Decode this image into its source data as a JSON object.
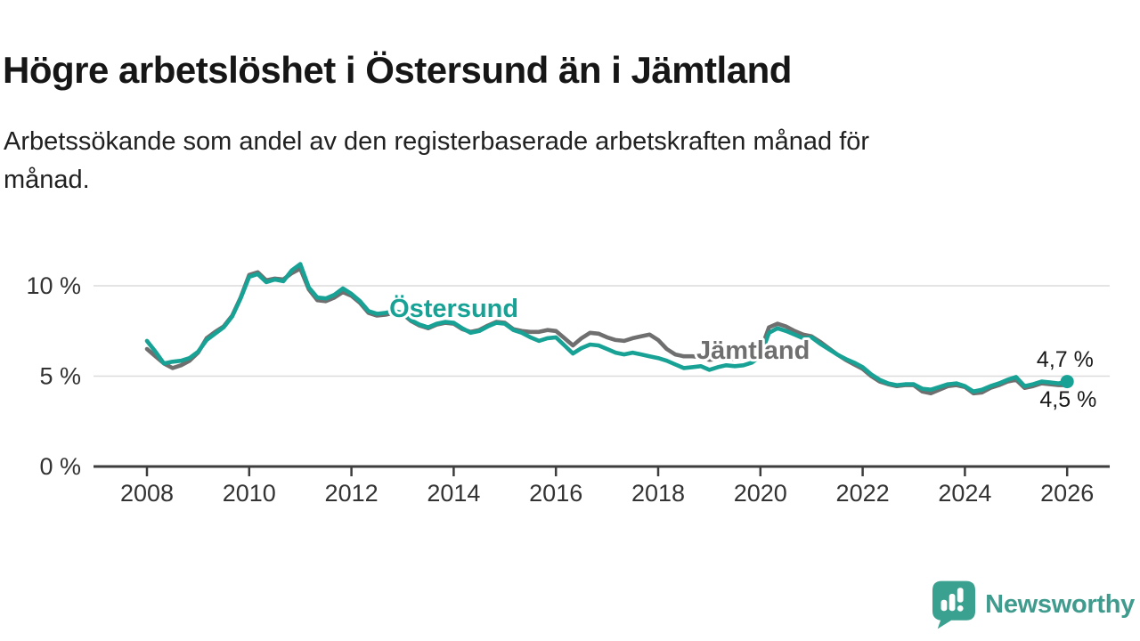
{
  "header": {
    "title": "Högre arbetslöshet i Östersund än i Jämtland",
    "subtitle_lines": [
      "Arbetssökande som andel av den registerbaserade arbetskraften månad för",
      "månad."
    ]
  },
  "chart_data": {
    "type": "line",
    "title": "Högre arbetslöshet i Östersund än i Jämtland",
    "subtitle": "Arbetssökande som andel av den registerbaserade arbetskraften månad för månad.",
    "x_axis": {
      "unit": "year",
      "start_year": 2008,
      "step_years": 0.1666667,
      "end_year": 2026,
      "ticks": [
        2008,
        2010,
        2012,
        2014,
        2016,
        2018,
        2020,
        2022,
        2024,
        2026
      ],
      "xlim": [
        2006.95,
        2026.85
      ]
    },
    "y_axis": {
      "unit": "percent",
      "ticks": [
        0,
        5,
        10
      ],
      "tick_labels": [
        "0 %",
        "5 %",
        "10 %"
      ],
      "gridlines": [
        5,
        10
      ],
      "ylim": [
        0,
        11.5
      ],
      "grid_on": true
    },
    "legend_position": "inline-labels",
    "series": [
      {
        "name": "Jämtland",
        "color": "#6F6F6F",
        "end_dot": false,
        "label_anchor": {
          "year": 2018.75,
          "value": 5.96,
          "anchor": "start"
        },
        "end_label": {
          "text": "4,5 %",
          "year": 2026.02,
          "value": 3.3,
          "anchor": "middle"
        },
        "values": [
          6.5,
          6.1,
          5.7,
          5.45,
          5.6,
          5.85,
          6.3,
          7.1,
          7.45,
          7.75,
          8.35,
          9.35,
          10.6,
          10.75,
          10.3,
          10.4,
          10.35,
          10.7,
          10.95,
          9.8,
          9.2,
          9.15,
          9.35,
          9.65,
          9.45,
          9.05,
          8.5,
          8.35,
          8.4,
          8.5,
          8.45,
          8.05,
          7.8,
          7.65,
          7.85,
          7.95,
          7.9,
          7.6,
          7.45,
          7.55,
          7.8,
          8.0,
          7.95,
          7.6,
          7.5,
          7.45,
          7.45,
          7.55,
          7.5,
          7.1,
          6.7,
          7.1,
          7.4,
          7.35,
          7.15,
          7.0,
          6.95,
          7.1,
          7.2,
          7.3,
          7.0,
          6.5,
          6.2,
          6.1,
          6.1,
          6.05,
          5.9,
          5.95,
          6.0,
          5.95,
          6.0,
          6.15,
          6.4,
          7.7,
          7.9,
          7.75,
          7.5,
          7.3,
          7.2,
          6.9,
          6.55,
          6.2,
          5.9,
          5.65,
          5.4,
          5.0,
          4.7,
          4.55,
          4.45,
          4.5,
          4.5,
          4.15,
          4.05,
          4.25,
          4.45,
          4.5,
          4.4,
          4.05,
          4.1,
          4.35,
          4.5,
          4.7,
          4.8,
          4.35,
          4.45,
          4.6,
          4.55,
          4.5,
          4.5
        ]
      },
      {
        "name": "Östersund",
        "color": "#17A295",
        "end_dot": true,
        "label_anchor": {
          "year": 2012.74,
          "value": 8.28,
          "anchor": "start"
        },
        "end_label": {
          "text": "4,7 %",
          "year": 2025.96,
          "value": 5.52,
          "anchor": "middle"
        },
        "values": [
          6.95,
          6.35,
          5.7,
          5.8,
          5.85,
          6.0,
          6.35,
          7.0,
          7.35,
          7.7,
          8.3,
          9.3,
          10.5,
          10.65,
          10.2,
          10.35,
          10.25,
          10.85,
          11.2,
          9.9,
          9.35,
          9.3,
          9.5,
          9.85,
          9.55,
          9.15,
          8.6,
          8.45,
          8.5,
          8.6,
          8.5,
          8.1,
          7.85,
          7.7,
          7.9,
          8.0,
          7.95,
          7.65,
          7.4,
          7.5,
          7.75,
          7.95,
          7.9,
          7.55,
          7.4,
          7.15,
          6.95,
          7.1,
          7.15,
          6.7,
          6.25,
          6.55,
          6.75,
          6.7,
          6.5,
          6.3,
          6.2,
          6.3,
          6.2,
          6.1,
          6.0,
          5.85,
          5.65,
          5.45,
          5.5,
          5.55,
          5.35,
          5.5,
          5.6,
          5.55,
          5.6,
          5.75,
          6.1,
          7.4,
          7.65,
          7.5,
          7.3,
          7.1,
          7.15,
          6.8,
          6.5,
          6.2,
          5.95,
          5.75,
          5.5,
          5.1,
          4.8,
          4.6,
          4.5,
          4.55,
          4.55,
          4.3,
          4.25,
          4.4,
          4.55,
          4.6,
          4.45,
          4.15,
          4.25,
          4.45,
          4.6,
          4.8,
          4.95,
          4.45,
          4.55,
          4.7,
          4.65,
          4.6,
          4.7
        ]
      }
    ]
  },
  "footer": {
    "brand": "Newsworthy"
  },
  "colors": {
    "oestersund_line": "#17A295",
    "jamtland_line": "#6F6F6F",
    "gridline": "#DBDBDB",
    "axis": "#3D3D3D",
    "axis_label": "#333333",
    "end_label_text": "#1A1A1A",
    "brand_teal": "#3F9B8D"
  }
}
